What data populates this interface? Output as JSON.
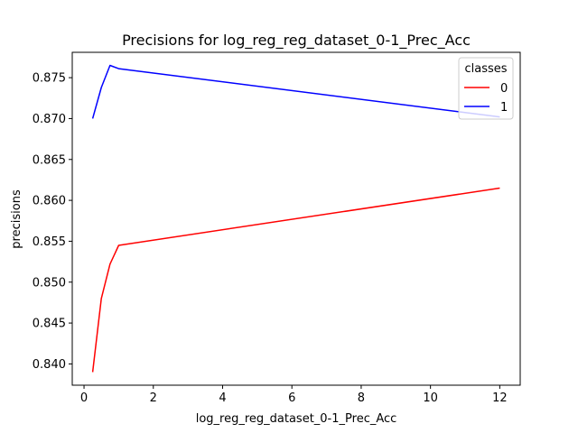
{
  "chart_data": {
    "type": "line",
    "title": "Precisions for log_reg_reg_dataset_0-1_Prec_Acc",
    "xlabel": "log_reg_reg_dataset_0-1_Prec_Acc",
    "ylabel": "precisions",
    "xlim": [
      -0.34,
      12.59
    ],
    "ylim": [
      0.8374,
      0.8781
    ],
    "xticks": [
      0,
      2,
      4,
      6,
      8,
      10,
      12
    ],
    "xtick_labels": [
      "0",
      "2",
      "4",
      "6",
      "8",
      "10",
      "12"
    ],
    "yticks": [
      0.84,
      0.845,
      0.85,
      0.855,
      0.86,
      0.865,
      0.87,
      0.875
    ],
    "ytick_labels": [
      "0.840",
      "0.845",
      "0.850",
      "0.855",
      "0.860",
      "0.865",
      "0.870",
      "0.875"
    ],
    "grid": false,
    "legend": {
      "title": "classes",
      "placement": "top-right"
    },
    "series": [
      {
        "name": "0",
        "color": "#ff0000",
        "x": [
          0.25,
          0.5,
          0.75,
          1.0,
          12.0
        ],
        "y": [
          0.839,
          0.848,
          0.8522,
          0.8545,
          0.8615
        ]
      },
      {
        "name": "1",
        "color": "#0000ff",
        "x": [
          0.25,
          0.5,
          0.75,
          1.0,
          12.0
        ],
        "y": [
          0.87,
          0.8738,
          0.8765,
          0.8761,
          0.8702
        ]
      }
    ]
  }
}
